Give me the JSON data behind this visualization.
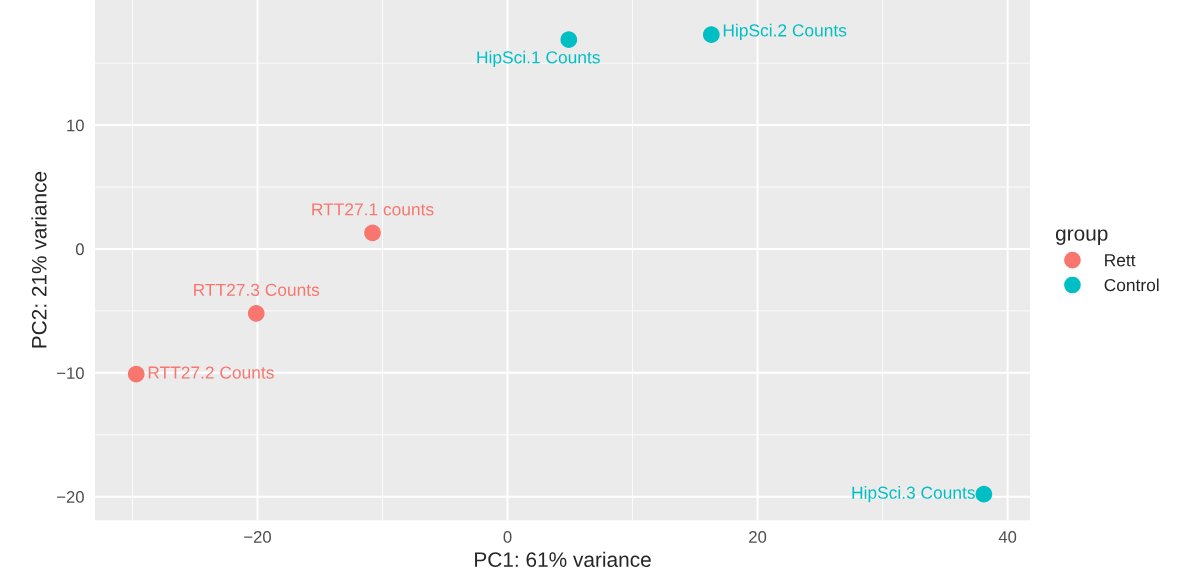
{
  "chart_data": {
    "type": "scatter",
    "xlabel": "PC1: 61% variance",
    "ylabel": "PC2: 21% variance",
    "legend_title": "group",
    "series": [
      {
        "name": "Rett",
        "color": "#f8766d",
        "x": [
          -10.8,
          -29.7,
          -20.1
        ],
        "values": [
          1.3,
          -10.1,
          -5.2
        ]
      },
      {
        "name": "Control",
        "color": "#00bfc4",
        "x": [
          4.9,
          16.3,
          38.1
        ],
        "values": [
          16.9,
          17.3,
          -19.8
        ]
      }
    ],
    "annotations": [
      {
        "text": "RTT27.1 counts",
        "x": -10.8,
        "y": 1.3
      },
      {
        "text": "RTT27.2 Counts",
        "x": -29.7,
        "y": -10.1
      },
      {
        "text": "RTT27.3 Counts",
        "x": -20.1,
        "y": -5.2
      },
      {
        "text": "HipSci.1 Counts",
        "x": 4.9,
        "y": 16.9
      },
      {
        "text": "HipSci.2 Counts",
        "x": 16.3,
        "y": 17.3
      },
      {
        "text": "HipSci.3 Counts",
        "x": 38.1,
        "y": -19.8
      }
    ],
    "xlim": [
      -33,
      41.8
    ],
    "ylim": [
      -21.9,
      20.1
    ],
    "xticks": [
      {
        "value": -20,
        "label": "−20"
      },
      0,
      20,
      40
    ],
    "yticks": [
      {
        "value": -20,
        "label": "−20"
      },
      {
        "value": -10,
        "label": "−10"
      },
      0,
      10
    ],
    "grid": true,
    "legend": "right",
    "marker": "circle"
  }
}
